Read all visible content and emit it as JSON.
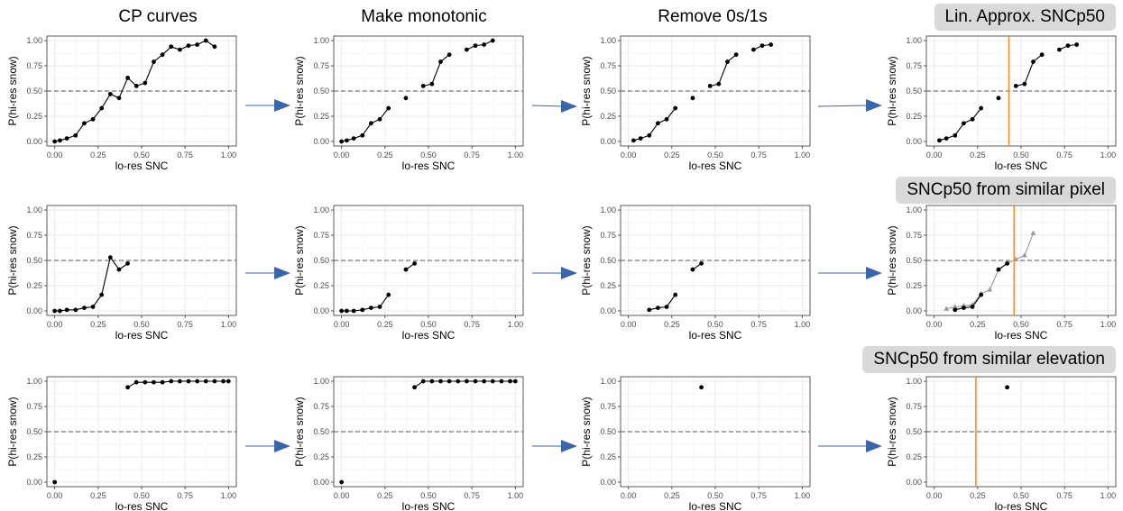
{
  "titles": {
    "col1": "CP curves",
    "col2": "Make monotonic",
    "col3": "Remove 0s/1s",
    "badge1": "Lin. Approx. SNCp50",
    "badge2": "SNCp50 from similar pixel",
    "badge3": "SNCp50 from similar elevation"
  },
  "colors": {
    "points": "#000000",
    "line": "#000000",
    "threshold": "#555555",
    "vertical_line": "#f28e2b",
    "similar_series": "#999999",
    "arrow": "#3a66a8",
    "panel_border": "#333333",
    "grid": "#ebebeb",
    "badge_bg": "#d9d9d9"
  },
  "chart_data": [
    {
      "id": "r1c1",
      "type": "line",
      "xlabel": "lo-res SNC",
      "ylabel": "P(hi-res snow)",
      "xlim": [
        0,
        1
      ],
      "ylim": [
        0,
        1
      ],
      "xticks": [
        "0.00",
        "0.25",
        "0.50",
        "0.75",
        "1.00"
      ],
      "yticks": [
        "0.00",
        "0.25",
        "0.50",
        "0.75",
        "1.00"
      ],
      "hline": 0.5,
      "segments": [
        [
          [
            0.0,
            0.0
          ],
          [
            0.03,
            0.01
          ],
          [
            0.07,
            0.03
          ],
          [
            0.12,
            0.06
          ],
          [
            0.17,
            0.18
          ],
          [
            0.22,
            0.22
          ],
          [
            0.27,
            0.33
          ],
          [
            0.32,
            0.47
          ],
          [
            0.37,
            0.43
          ],
          [
            0.42,
            0.63
          ],
          [
            0.47,
            0.55
          ],
          [
            0.52,
            0.58
          ],
          [
            0.57,
            0.79
          ],
          [
            0.62,
            0.86
          ],
          [
            0.67,
            0.94
          ],
          [
            0.72,
            0.91
          ],
          [
            0.77,
            0.95
          ],
          [
            0.82,
            0.96
          ],
          [
            0.87,
            1.0
          ],
          [
            0.92,
            0.94
          ]
        ]
      ]
    },
    {
      "id": "r1c2",
      "type": "line",
      "xlabel": "lo-res SNC",
      "ylabel": "P(hi-res snow)",
      "xlim": [
        0,
        1
      ],
      "ylim": [
        0,
        1
      ],
      "xticks": [
        "0.00",
        "0.25",
        "0.50",
        "0.75",
        "1.00"
      ],
      "yticks": [
        "0.00",
        "0.25",
        "0.50",
        "0.75",
        "1.00"
      ],
      "hline": 0.5,
      "segments": [
        [
          [
            0.0,
            0.0
          ],
          [
            0.03,
            0.01
          ],
          [
            0.07,
            0.03
          ],
          [
            0.12,
            0.06
          ],
          [
            0.17,
            0.18
          ],
          [
            0.22,
            0.22
          ],
          [
            0.27,
            0.33
          ]
        ],
        [
          [
            0.37,
            0.43
          ]
        ],
        [
          [
            0.47,
            0.55
          ],
          [
            0.52,
            0.57
          ],
          [
            0.57,
            0.79
          ],
          [
            0.62,
            0.86
          ]
        ],
        [
          [
            0.72,
            0.91
          ],
          [
            0.77,
            0.95
          ],
          [
            0.82,
            0.96
          ],
          [
            0.87,
            1.0
          ]
        ]
      ]
    },
    {
      "id": "r1c3",
      "type": "line",
      "xlabel": "lo-res SNC",
      "ylabel": "P(hi-res snow)",
      "xlim": [
        0,
        1
      ],
      "ylim": [
        0,
        1
      ],
      "xticks": [
        "0.00",
        "0.25",
        "0.50",
        "0.75",
        "1.00"
      ],
      "yticks": [
        "0.00",
        "0.25",
        "0.50",
        "0.75",
        "1.00"
      ],
      "hline": 0.5,
      "segments": [
        [
          [
            0.03,
            0.01
          ],
          [
            0.07,
            0.03
          ],
          [
            0.12,
            0.06
          ],
          [
            0.17,
            0.18
          ],
          [
            0.22,
            0.22
          ],
          [
            0.27,
            0.33
          ]
        ],
        [
          [
            0.37,
            0.43
          ]
        ],
        [
          [
            0.47,
            0.55
          ],
          [
            0.52,
            0.57
          ],
          [
            0.57,
            0.79
          ],
          [
            0.62,
            0.86
          ]
        ],
        [
          [
            0.72,
            0.91
          ],
          [
            0.77,
            0.95
          ],
          [
            0.82,
            0.96
          ]
        ]
      ]
    },
    {
      "id": "r1c4",
      "type": "line",
      "xlabel": "lo-res SNC",
      "ylabel": "P(hi-res snow)",
      "xlim": [
        0,
        1
      ],
      "ylim": [
        0,
        1
      ],
      "xticks": [
        "0.00",
        "0.25",
        "0.50",
        "0.75",
        "1.00"
      ],
      "yticks": [
        "0.00",
        "0.25",
        "0.50",
        "0.75",
        "1.00"
      ],
      "hline": 0.5,
      "vline": 0.43,
      "segments": [
        [
          [
            0.03,
            0.01
          ],
          [
            0.07,
            0.03
          ],
          [
            0.12,
            0.06
          ],
          [
            0.17,
            0.18
          ],
          [
            0.22,
            0.22
          ],
          [
            0.27,
            0.33
          ]
        ],
        [
          [
            0.37,
            0.43
          ]
        ],
        [
          [
            0.47,
            0.55
          ],
          [
            0.52,
            0.57
          ],
          [
            0.57,
            0.79
          ],
          [
            0.62,
            0.86
          ]
        ],
        [
          [
            0.72,
            0.91
          ],
          [
            0.77,
            0.95
          ],
          [
            0.82,
            0.96
          ]
        ]
      ]
    },
    {
      "id": "r2c1",
      "type": "line",
      "xlabel": "lo-res SNC",
      "ylabel": "P(hi-res snow)",
      "xlim": [
        0,
        1
      ],
      "ylim": [
        0,
        1
      ],
      "xticks": [
        "0.00",
        "0.25",
        "0.50",
        "0.75",
        "1.00"
      ],
      "yticks": [
        "0.00",
        "0.25",
        "0.50",
        "0.75",
        "1.00"
      ],
      "hline": 0.5,
      "segments": [
        [
          [
            0.0,
            0.0
          ],
          [
            0.03,
            0.0
          ],
          [
            0.07,
            0.01
          ],
          [
            0.12,
            0.01
          ],
          [
            0.17,
            0.03
          ],
          [
            0.22,
            0.04
          ],
          [
            0.27,
            0.16
          ],
          [
            0.32,
            0.53
          ],
          [
            0.37,
            0.41
          ],
          [
            0.42,
            0.47
          ]
        ]
      ]
    },
    {
      "id": "r2c2",
      "type": "line",
      "xlabel": "lo-res SNC",
      "ylabel": "P(hi-res snow)",
      "xlim": [
        0,
        1
      ],
      "ylim": [
        0,
        1
      ],
      "xticks": [
        "0.00",
        "0.25",
        "0.50",
        "0.75",
        "1.00"
      ],
      "yticks": [
        "0.00",
        "0.25",
        "0.50",
        "0.75",
        "1.00"
      ],
      "hline": 0.5,
      "segments": [
        [
          [
            0.0,
            0.0
          ],
          [
            0.03,
            0.0
          ],
          [
            0.07,
            0.0
          ],
          [
            0.12,
            0.01
          ],
          [
            0.17,
            0.03
          ],
          [
            0.22,
            0.04
          ],
          [
            0.27,
            0.16
          ]
        ],
        [
          [
            0.37,
            0.41
          ],
          [
            0.42,
            0.47
          ]
        ]
      ]
    },
    {
      "id": "r2c3",
      "type": "line",
      "xlabel": "lo-res SNC",
      "ylabel": "P(hi-res snow)",
      "xlim": [
        0,
        1
      ],
      "ylim": [
        0,
        1
      ],
      "xticks": [
        "0.00",
        "0.25",
        "0.50",
        "0.75",
        "1.00"
      ],
      "yticks": [
        "0.00",
        "0.25",
        "0.50",
        "0.75",
        "1.00"
      ],
      "hline": 0.5,
      "segments": [
        [
          [
            0.12,
            0.01
          ],
          [
            0.17,
            0.03
          ],
          [
            0.22,
            0.04
          ],
          [
            0.27,
            0.16
          ]
        ],
        [
          [
            0.37,
            0.41
          ],
          [
            0.42,
            0.47
          ]
        ]
      ]
    },
    {
      "id": "r2c4",
      "type": "line",
      "xlabel": "lo-res SNC",
      "ylabel": "P(hi-res snow)",
      "xlim": [
        0,
        1
      ],
      "ylim": [
        0,
        1
      ],
      "xticks": [
        "0.00",
        "0.25",
        "0.50",
        "0.75",
        "1.00"
      ],
      "yticks": [
        "0.00",
        "0.25",
        "0.50",
        "0.75",
        "1.00"
      ],
      "hline": 0.5,
      "vline": 0.46,
      "series": [
        {
          "style": "similar",
          "segments": [
            [
              [
                0.07,
                0.02
              ],
              [
                0.12,
                0.04
              ],
              [
                0.17,
                0.05
              ],
              [
                0.22,
                0.06
              ],
              [
                0.27,
                0.17
              ],
              [
                0.32,
                0.21
              ],
              [
                0.37,
                0.41
              ],
              [
                0.42,
                0.47
              ],
              [
                0.47,
                0.51
              ],
              [
                0.52,
                0.55
              ],
              [
                0.57,
                0.77
              ]
            ]
          ]
        },
        {
          "style": "main",
          "segments": [
            [
              [
                0.12,
                0.01
              ],
              [
                0.17,
                0.03
              ],
              [
                0.22,
                0.04
              ],
              [
                0.27,
                0.16
              ]
            ],
            [
              [
                0.37,
                0.41
              ],
              [
                0.42,
                0.47
              ]
            ]
          ]
        }
      ]
    },
    {
      "id": "r3c1",
      "type": "line",
      "xlabel": "lo-res SNC",
      "ylabel": "P(hi-res snow)",
      "xlim": [
        0,
        1
      ],
      "ylim": [
        0,
        1
      ],
      "xticks": [
        "0.00",
        "0.25",
        "0.50",
        "0.75",
        "1.00"
      ],
      "yticks": [
        "0.00",
        "0.25",
        "0.50",
        "0.75",
        "1.00"
      ],
      "hline": 0.5,
      "segments": [
        [
          [
            0.0,
            0.0
          ]
        ],
        [
          [
            0.42,
            0.94
          ],
          [
            0.47,
            0.99
          ],
          [
            0.52,
            0.99
          ],
          [
            0.57,
            0.99
          ],
          [
            0.62,
            0.99
          ],
          [
            0.67,
            1.0
          ],
          [
            0.72,
            1.0
          ],
          [
            0.77,
            1.0
          ],
          [
            0.82,
            1.0
          ],
          [
            0.87,
            1.0
          ],
          [
            0.92,
            1.0
          ],
          [
            0.97,
            1.0
          ],
          [
            1.0,
            1.0
          ]
        ]
      ]
    },
    {
      "id": "r3c2",
      "type": "line",
      "xlabel": "lo-res SNC",
      "ylabel": "P(hi-res snow)",
      "xlim": [
        0,
        1
      ],
      "ylim": [
        0,
        1
      ],
      "xticks": [
        "0.00",
        "0.25",
        "0.50",
        "0.75",
        "1.00"
      ],
      "yticks": [
        "0.00",
        "0.25",
        "0.50",
        "0.75",
        "1.00"
      ],
      "hline": 0.5,
      "segments": [
        [
          [
            0.0,
            0.0
          ]
        ],
        [
          [
            0.42,
            0.94
          ],
          [
            0.47,
            1.0
          ],
          [
            0.52,
            1.0
          ],
          [
            0.57,
            1.0
          ],
          [
            0.62,
            1.0
          ],
          [
            0.67,
            1.0
          ],
          [
            0.72,
            1.0
          ],
          [
            0.77,
            1.0
          ],
          [
            0.82,
            1.0
          ],
          [
            0.87,
            1.0
          ],
          [
            0.92,
            1.0
          ],
          [
            0.97,
            1.0
          ],
          [
            1.0,
            1.0
          ]
        ]
      ]
    },
    {
      "id": "r3c3",
      "type": "line",
      "xlabel": "lo-res SNC",
      "ylabel": "P(hi-res snow)",
      "xlim": [
        0,
        1
      ],
      "ylim": [
        0,
        1
      ],
      "xticks": [
        "0.00",
        "0.25",
        "0.50",
        "0.75",
        "1.00"
      ],
      "yticks": [
        "0.00",
        "0.25",
        "0.50",
        "0.75",
        "1.00"
      ],
      "hline": 0.5,
      "segments": [
        [
          [
            0.42,
            0.94
          ]
        ]
      ]
    },
    {
      "id": "r3c4",
      "type": "line",
      "xlabel": "lo-res SNC",
      "ylabel": "P(hi-res snow)",
      "xlim": [
        0,
        1
      ],
      "ylim": [
        0,
        1
      ],
      "xticks": [
        "0.00",
        "0.25",
        "0.50",
        "0.75",
        "1.00"
      ],
      "yticks": [
        "0.00",
        "0.25",
        "0.50",
        "0.75",
        "1.00"
      ],
      "hline": 0.5,
      "vline": 0.24,
      "segments": [
        [
          [
            0.42,
            0.94
          ]
        ]
      ]
    }
  ]
}
